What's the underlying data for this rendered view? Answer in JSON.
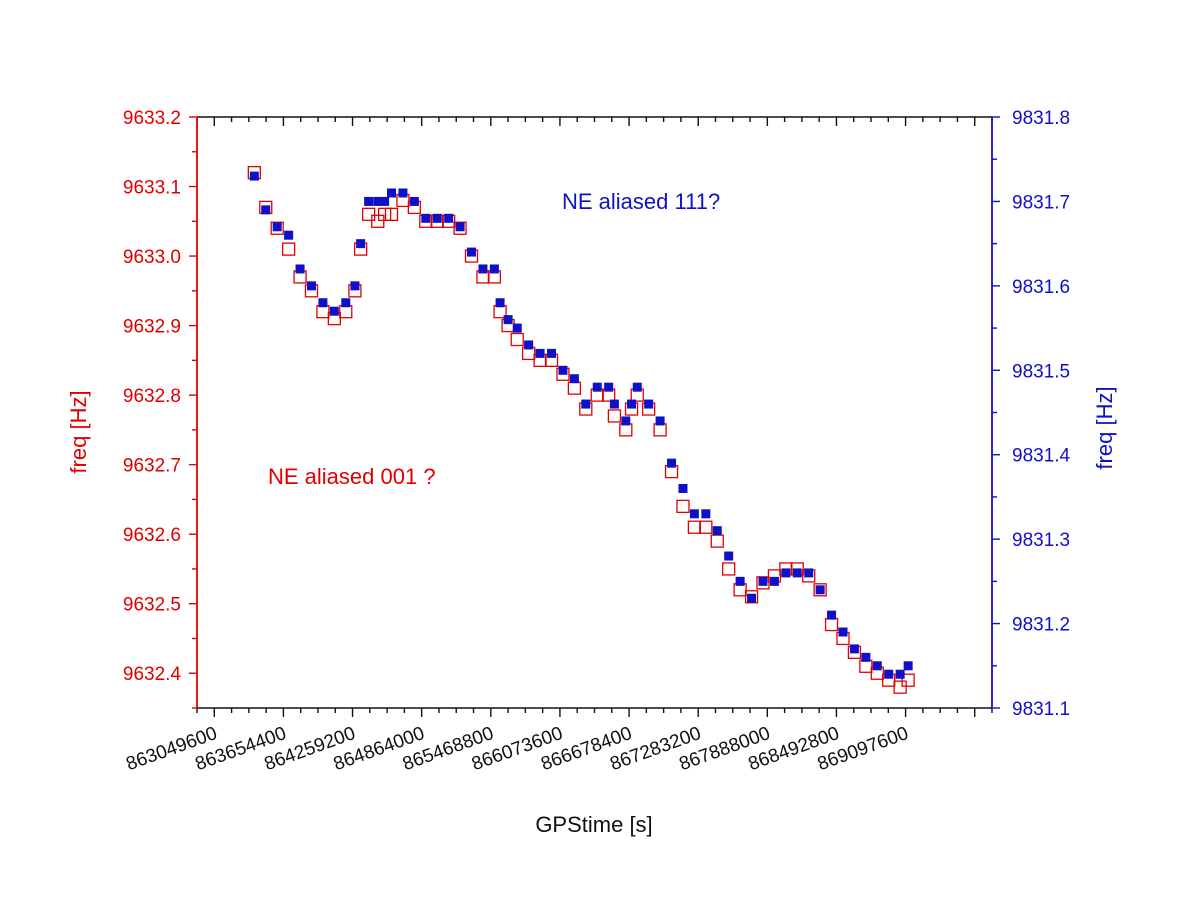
{
  "chart_data": {
    "type": "scatter",
    "xlabel": "GPStime [s]",
    "ylabel_left": "freq [Hz]",
    "ylabel_right": "freq [Hz]",
    "xlim": [
      862898400,
      869853600
    ],
    "ylim_left": [
      9632.35,
      9633.2
    ],
    "ylim_right": [
      9831.1,
      9831.8
    ],
    "x_ticks": [
      "863049600",
      "863654400",
      "864259200",
      "864864000",
      "865468800",
      "866073600",
      "866678400",
      "867283200",
      "867888000",
      "868492800",
      "869097600"
    ],
    "y_left_ticks": [
      "9632.4",
      "9632.5",
      "9632.6",
      "9632.7",
      "9632.8",
      "9632.9",
      "9633.0",
      "9633.1",
      "9633.2"
    ],
    "y_right_ticks": [
      "9831.1",
      "9831.2",
      "9831.3",
      "9831.4",
      "9831.5",
      "9831.6",
      "9831.7",
      "9831.8"
    ],
    "colors": {
      "left": "#e00000",
      "right": "#1010c8",
      "axis": "#111111"
    },
    "series": [
      {
        "axis": "left",
        "marker": "open-square",
        "color": "#e00000",
        "x": [
          863400000,
          863500000,
          863600000,
          863700000,
          863800000,
          863900000,
          864000000,
          864100000,
          864200000,
          864280000,
          864330000,
          864400000,
          864480000,
          864540000,
          864600000,
          864700000,
          864800000,
          864900000,
          865000000,
          865100000,
          865200000,
          865300000,
          865400000,
          865500000,
          865550000,
          865620000,
          865700000,
          865800000,
          865900000,
          866000000,
          866100000,
          866200000,
          866300000,
          866400000,
          866500000,
          866550000,
          866650000,
          866700000,
          866750000,
          866850000,
          866950000,
          867050000,
          867150000,
          867250000,
          867350000,
          867450000,
          867550000,
          867650000,
          867750000,
          867850000,
          867950000,
          868050000,
          868150000,
          868250000,
          868350000,
          868450000,
          868550000,
          868650000,
          868750000,
          868850000,
          868950000,
          869050000,
          869120000
        ],
        "y": [
          9633.12,
          9633.07,
          9633.04,
          9633.01,
          9632.97,
          9632.95,
          9632.92,
          9632.91,
          9632.92,
          9632.95,
          9633.01,
          9633.06,
          9633.05,
          9633.06,
          9633.06,
          9633.08,
          9633.07,
          9633.05,
          9633.05,
          9633.05,
          9633.04,
          9633.0,
          9632.97,
          9632.97,
          9632.92,
          9632.9,
          9632.88,
          9632.86,
          9632.85,
          9632.85,
          9632.83,
          9632.81,
          9632.78,
          9632.8,
          9632.8,
          9632.77,
          9632.75,
          9632.78,
          9632.8,
          9632.78,
          9632.75,
          9632.69,
          9632.64,
          9632.61,
          9632.61,
          9632.59,
          9632.55,
          9632.52,
          9632.51,
          9632.53,
          9632.54,
          9632.55,
          9632.55,
          9632.54,
          9632.52,
          9632.47,
          9632.45,
          9632.43,
          9632.41,
          9632.4,
          9632.39,
          9632.38,
          9632.39
        ]
      },
      {
        "axis": "right",
        "marker": "filled-square",
        "color": "#1010c8",
        "x": [
          863400000,
          863500000,
          863600000,
          863700000,
          863800000,
          863900000,
          864000000,
          864100000,
          864200000,
          864280000,
          864330000,
          864400000,
          864480000,
          864540000,
          864600000,
          864700000,
          864800000,
          864900000,
          865000000,
          865100000,
          865200000,
          865300000,
          865400000,
          865500000,
          865550000,
          865620000,
          865700000,
          865800000,
          865900000,
          866000000,
          866100000,
          866200000,
          866300000,
          866400000,
          866500000,
          866550000,
          866650000,
          866700000,
          866750000,
          866850000,
          866950000,
          867050000,
          867150000,
          867250000,
          867350000,
          867450000,
          867550000,
          867650000,
          867750000,
          867850000,
          867950000,
          868050000,
          868150000,
          868250000,
          868350000,
          868450000,
          868550000,
          868650000,
          868750000,
          868850000,
          868950000,
          869050000,
          869120000
        ],
        "y": [
          9831.73,
          9831.69,
          9831.67,
          9831.66,
          9831.62,
          9831.6,
          9831.58,
          9831.57,
          9831.58,
          9831.6,
          9831.65,
          9831.7,
          9831.7,
          9831.7,
          9831.71,
          9831.71,
          9831.7,
          9831.68,
          9831.68,
          9831.68,
          9831.67,
          9831.64,
          9831.62,
          9831.62,
          9831.58,
          9831.56,
          9831.55,
          9831.53,
          9831.52,
          9831.52,
          9831.5,
          9831.49,
          9831.46,
          9831.48,
          9831.48,
          9831.46,
          9831.44,
          9831.46,
          9831.48,
          9831.46,
          9831.44,
          9831.39,
          9831.36,
          9831.33,
          9831.33,
          9831.31,
          9831.28,
          9831.25,
          9831.23,
          9831.25,
          9831.25,
          9831.26,
          9831.26,
          9831.26,
          9831.24,
          9831.21,
          9831.19,
          9831.17,
          9831.16,
          9831.15,
          9831.14,
          9831.14,
          9831.15
        ]
      }
    ],
    "annotations": [
      {
        "text": "NE aliased 001 ?",
        "color": "#e00000"
      },
      {
        "text": "NE aliased 111?",
        "color": "#1010c8"
      }
    ]
  }
}
